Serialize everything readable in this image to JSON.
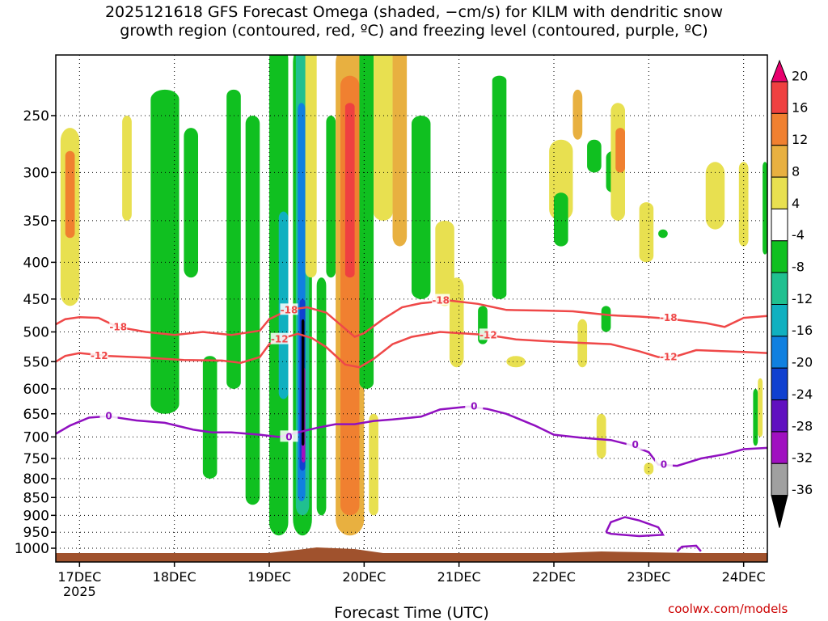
{
  "title": {
    "line1": "2025121618 GFS Forecast Omega (shaded, −cm/s) for KILM with dendritic snow",
    "line2": "growth region (contoured, red, ºC) and freezing level (contoured, purple, ºC)"
  },
  "credit": "coolwx.com/models",
  "chart_data": {
    "type": "heatmap",
    "xlabel": "Forecast Time (UTC)",
    "ylabel": "",
    "x_ticks": [
      "17DEC",
      "18DEC",
      "19DEC",
      "20DEC",
      "21DEC",
      "22DEC",
      "23DEC",
      "24DEC"
    ],
    "x_tick_sublabel": "2025",
    "x_range_days": [
      16.75,
      24.25
    ],
    "y_scale": "log-pressure (hPa, inverted)",
    "y_ticks": [
      250,
      300,
      350,
      400,
      450,
      500,
      550,
      600,
      650,
      700,
      750,
      800,
      850,
      900,
      950,
      1000
    ],
    "grid": true,
    "colorbar": {
      "levels": [
        "20",
        "16",
        "12",
        "8",
        "4",
        "-4",
        "-8",
        "-12",
        "-16",
        "-20",
        "-24",
        "-28",
        "-32",
        "-36"
      ],
      "colors": [
        "#e8006e",
        "#ef4040",
        "#f08030",
        "#e8b040",
        "#e8e050",
        "#ffffff",
        "#10c020",
        "#20c090",
        "#10b0c0",
        "#1080e0",
        "#1040d0",
        "#6010c0",
        "#a010c0",
        "#a0a0a0",
        "#000000"
      ]
    },
    "colors": {
      "dgz_contour": "#ef4848",
      "freezing_contour": "#9010c0",
      "terrain": "#a0522d"
    },
    "contours": [
      {
        "name": "-18",
        "color": "#ef4848",
        "label_positions_day": [
          17.4,
          19.2,
          20.8,
          23.2
        ],
        "points": [
          [
            16.75,
            488
          ],
          [
            16.85,
            480
          ],
          [
            17.0,
            477
          ],
          [
            17.2,
            478
          ],
          [
            17.4,
            492
          ],
          [
            17.7,
            500
          ],
          [
            18.0,
            505
          ],
          [
            18.3,
            500
          ],
          [
            18.6,
            505
          ],
          [
            18.9,
            498
          ],
          [
            19.0,
            480
          ],
          [
            19.2,
            466
          ],
          [
            19.4,
            462
          ],
          [
            19.6,
            470
          ],
          [
            19.8,
            495
          ],
          [
            19.9,
            508
          ],
          [
            20.0,
            502
          ],
          [
            20.2,
            480
          ],
          [
            20.4,
            462
          ],
          [
            20.6,
            456
          ],
          [
            20.9,
            452
          ],
          [
            21.2,
            457
          ],
          [
            21.5,
            466
          ],
          [
            21.9,
            467
          ],
          [
            22.2,
            468
          ],
          [
            22.6,
            474
          ],
          [
            22.9,
            476
          ],
          [
            23.1,
            478
          ],
          [
            23.3,
            481
          ],
          [
            23.6,
            486
          ],
          [
            23.8,
            492
          ],
          [
            24.0,
            478
          ],
          [
            24.25,
            475
          ]
        ]
      },
      {
        "name": "-12",
        "color": "#ef4848",
        "label_positions_day": [
          17.2,
          19.1,
          21.3,
          23.2
        ],
        "points": [
          [
            16.75,
            550
          ],
          [
            16.85,
            540
          ],
          [
            17.0,
            535
          ],
          [
            17.3,
            540
          ],
          [
            17.7,
            543
          ],
          [
            18.1,
            547
          ],
          [
            18.5,
            548
          ],
          [
            18.7,
            552
          ],
          [
            18.9,
            542
          ],
          [
            19.0,
            520
          ],
          [
            19.1,
            512
          ],
          [
            19.3,
            503
          ],
          [
            19.45,
            510
          ],
          [
            19.6,
            525
          ],
          [
            19.8,
            555
          ],
          [
            19.95,
            560
          ],
          [
            20.1,
            545
          ],
          [
            20.3,
            520
          ],
          [
            20.5,
            508
          ],
          [
            20.8,
            500
          ],
          [
            21.0,
            502
          ],
          [
            21.3,
            505
          ],
          [
            21.6,
            512
          ],
          [
            21.9,
            515
          ],
          [
            22.3,
            518
          ],
          [
            22.6,
            520
          ],
          [
            22.9,
            532
          ],
          [
            23.1,
            542
          ],
          [
            23.3,
            540
          ],
          [
            23.5,
            530
          ],
          [
            23.8,
            532
          ],
          [
            24.0,
            533
          ],
          [
            24.25,
            535
          ]
        ]
      },
      {
        "name": "0",
        "color": "#9010c0",
        "label_positions_day": [
          17.3,
          19.2,
          21.15,
          23.15,
          22.85
        ],
        "points": [
          [
            16.75,
            693
          ],
          [
            16.9,
            675
          ],
          [
            17.1,
            658
          ],
          [
            17.3,
            655
          ],
          [
            17.6,
            664
          ],
          [
            17.9,
            669
          ],
          [
            18.2,
            684
          ],
          [
            18.4,
            690
          ],
          [
            18.6,
            690
          ],
          [
            18.9,
            695
          ],
          [
            19.1,
            700
          ],
          [
            19.3,
            690
          ],
          [
            19.5,
            680
          ],
          [
            19.7,
            672
          ],
          [
            19.9,
            672
          ],
          [
            20.1,
            665
          ],
          [
            20.3,
            662
          ],
          [
            20.6,
            656
          ],
          [
            20.8,
            641
          ],
          [
            21.1,
            635
          ],
          [
            21.3,
            640
          ],
          [
            21.5,
            650
          ],
          [
            21.8,
            675
          ],
          [
            22.0,
            695
          ],
          [
            22.3,
            702
          ],
          [
            22.6,
            707
          ],
          [
            22.8,
            718
          ],
          [
            23.0,
            735
          ],
          [
            23.1,
            765
          ],
          [
            23.3,
            768
          ],
          [
            23.55,
            750
          ],
          [
            23.8,
            740
          ],
          [
            24.0,
            728
          ],
          [
            24.25,
            725
          ]
        ]
      }
    ]
  }
}
